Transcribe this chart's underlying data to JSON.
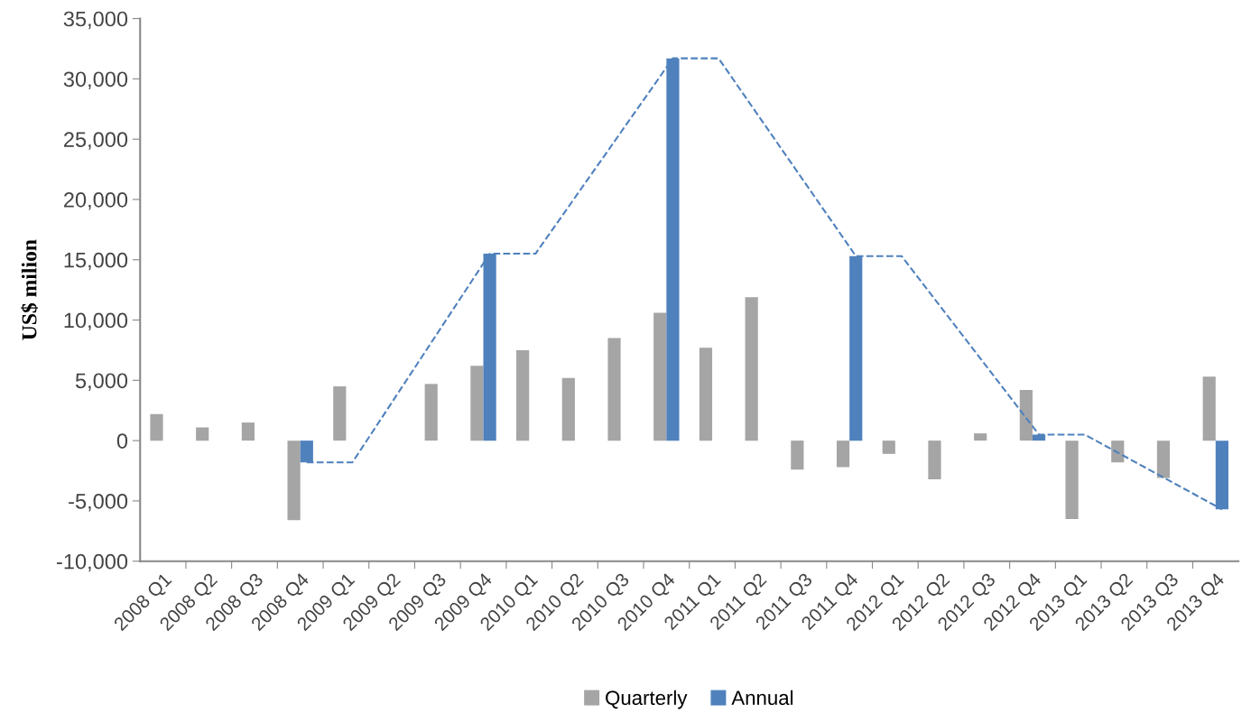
{
  "chart_data": {
    "type": "bar",
    "ylabel": "US$ milion",
    "categories": [
      "2008 Q1",
      "2008 Q2",
      "2008 Q3",
      "2008 Q4",
      "2009 Q1",
      "2009 Q2",
      "2009 Q3",
      "2009 Q4",
      "2010 Q1",
      "2010 Q2",
      "2010 Q3",
      "2010 Q4",
      "2011 Q1",
      "2011 Q2",
      "2011 Q3",
      "2011 Q4",
      "2012 Q1",
      "2012 Q2",
      "2012 Q3",
      "2012 Q4",
      "2013 Q1",
      "2013 Q2",
      "2013 Q3",
      "2013 Q4"
    ],
    "series": [
      {
        "name": "Quarterly",
        "color": "#a5a5a5",
        "values": [
          2200,
          1100,
          1500,
          -6600,
          4500,
          null,
          4700,
          6200,
          7500,
          5200,
          8500,
          10600,
          7700,
          11900,
          -2400,
          -2200,
          -1100,
          -3200,
          600,
          4200,
          -6500,
          -1800,
          -3100,
          5300
        ]
      },
      {
        "name": "Annual",
        "color": "#4f81bd",
        "values": [
          null,
          null,
          null,
          -1800,
          null,
          null,
          null,
          15500,
          null,
          null,
          null,
          31700,
          null,
          null,
          null,
          15300,
          null,
          null,
          null,
          500,
          null,
          null,
          null,
          -5700
        ]
      },
      {
        "type": "line",
        "color": "#4f81bd",
        "line_style": "dashed",
        "values": [
          null,
          null,
          null,
          -1800,
          -1800,
          null,
          null,
          15500,
          15500,
          null,
          null,
          31700,
          31700,
          null,
          null,
          15300,
          15300,
          null,
          null,
          500,
          500,
          null,
          null,
          -5700
        ]
      }
    ],
    "ylim": [
      -10000,
      35000
    ],
    "yticks": [
      {
        "value": -10000,
        "label": "-10,000"
      },
      {
        "value": -5000,
        "label": "-5,000"
      },
      0,
      {
        "value": 5000,
        "label": "5,000"
      },
      {
        "value": 10000,
        "label": "10,000"
      },
      {
        "value": 15000,
        "label": "15,000"
      },
      {
        "value": 20000,
        "label": "20,000"
      },
      {
        "value": 25000,
        "label": "25,000"
      },
      {
        "value": 30000,
        "label": "30,000"
      },
      {
        "value": 35000,
        "label": "35,000"
      }
    ],
    "grid": false,
    "legend": "bottom"
  }
}
